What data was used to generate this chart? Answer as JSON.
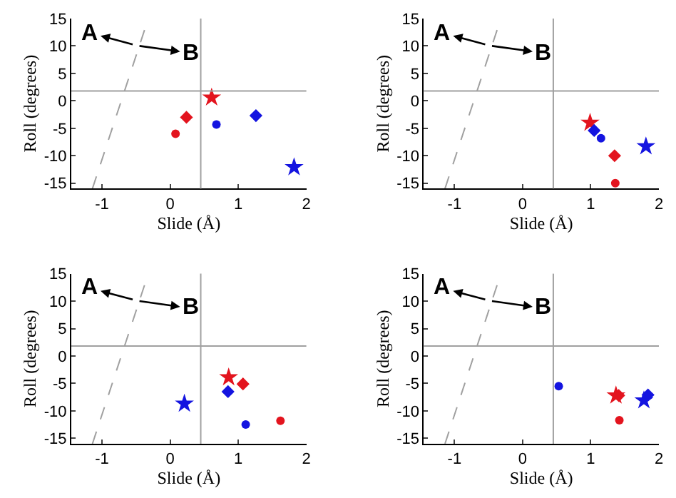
{
  "chart_data": [
    {
      "type": "scatter",
      "xlabel": "Slide (Å)",
      "ylabel": "Roll (degrees)",
      "xlim": [
        -1.45,
        2.0
      ],
      "ylim": [
        -16,
        15
      ],
      "xticks": [
        -1,
        0,
        1,
        2
      ],
      "yticks": [
        -15,
        -10,
        -5,
        0,
        5,
        10,
        15
      ],
      "annotations": [
        "A",
        "B"
      ],
      "ref_lines": [
        {
          "axis": "x",
          "value": 0.45,
          "color": "#a0a0a0"
        },
        {
          "axis": "y",
          "value": 1.8,
          "color": "#a0a0a0"
        }
      ],
      "series": [
        {
          "type": "line",
          "line_style": "dashed",
          "marker": "none",
          "color": "#a0a0a0",
          "x": [
            -1.14,
            -0.32
          ],
          "values": [
            -16,
            15
          ]
        },
        {
          "marker": "star",
          "color": "#e3141e",
          "x": [
            0.61
          ],
          "values": [
            0.6
          ]
        },
        {
          "marker": "diamond",
          "color": "#e3141e",
          "x": [
            0.24
          ],
          "values": [
            -3.0
          ]
        },
        {
          "marker": "circle",
          "color": "#e3141e",
          "x": [
            0.08
          ],
          "values": [
            -6.0
          ]
        },
        {
          "marker": "circle",
          "color": "#1414e0",
          "x": [
            0.68
          ],
          "values": [
            -4.3
          ]
        },
        {
          "marker": "diamond",
          "color": "#1414e0",
          "x": [
            1.26
          ],
          "values": [
            -2.7
          ]
        },
        {
          "marker": "star",
          "color": "#1414e0",
          "x": [
            1.82
          ],
          "values": [
            -12.1
          ]
        }
      ]
    },
    {
      "type": "scatter",
      "xlabel": "Slide (Å)",
      "ylabel": "Roll (degrees)",
      "xlim": [
        -1.45,
        2.0
      ],
      "ylim": [
        -16,
        15
      ],
      "xticks": [
        -1,
        0,
        1,
        2
      ],
      "yticks": [
        -15,
        -10,
        -5,
        0,
        5,
        10,
        15
      ],
      "annotations": [
        "A",
        "B"
      ],
      "ref_lines": [
        {
          "axis": "x",
          "value": 0.45,
          "color": "#a0a0a0"
        },
        {
          "axis": "y",
          "value": 1.8,
          "color": "#a0a0a0"
        }
      ],
      "series": [
        {
          "type": "line",
          "line_style": "dashed",
          "marker": "none",
          "color": "#a0a0a0",
          "x": [
            -1.14,
            -0.32
          ],
          "values": [
            -16,
            15
          ]
        },
        {
          "marker": "star",
          "color": "#e3141e",
          "x": [
            0.99
          ],
          "values": [
            -4.0
          ]
        },
        {
          "marker": "diamond",
          "color": "#e3141e",
          "x": [
            1.35
          ],
          "values": [
            -10.0
          ]
        },
        {
          "marker": "circle",
          "color": "#e3141e",
          "x": [
            1.36
          ],
          "values": [
            -15.0
          ]
        },
        {
          "marker": "circle",
          "color": "#1414e0",
          "x": [
            1.15
          ],
          "values": [
            -6.8
          ]
        },
        {
          "marker": "diamond",
          "color": "#1414e0",
          "x": [
            1.05
          ],
          "values": [
            -5.4
          ]
        },
        {
          "marker": "star",
          "color": "#1414e0",
          "x": [
            1.81
          ],
          "values": [
            -8.3
          ]
        }
      ]
    },
    {
      "type": "scatter",
      "xlabel": "Slide (Å)",
      "ylabel": "Roll (degrees)",
      "xlim": [
        -1.45,
        2.0
      ],
      "ylim": [
        -16,
        15
      ],
      "xticks": [
        -1,
        0,
        1,
        2
      ],
      "yticks": [
        -15,
        -10,
        -5,
        0,
        5,
        10,
        15
      ],
      "annotations": [
        "A",
        "B"
      ],
      "ref_lines": [
        {
          "axis": "x",
          "value": 0.45,
          "color": "#a0a0a0"
        },
        {
          "axis": "y",
          "value": 1.8,
          "color": "#a0a0a0"
        }
      ],
      "series": [
        {
          "type": "line",
          "line_style": "dashed",
          "marker": "none",
          "color": "#a0a0a0",
          "x": [
            -1.14,
            -0.32
          ],
          "values": [
            -16,
            15
          ]
        },
        {
          "marker": "star",
          "color": "#e3141e",
          "x": [
            0.86
          ],
          "values": [
            -3.9
          ]
        },
        {
          "marker": "diamond",
          "color": "#e3141e",
          "x": [
            1.07
          ],
          "values": [
            -5.1
          ]
        },
        {
          "marker": "circle",
          "color": "#e3141e",
          "x": [
            1.62
          ],
          "values": [
            -11.8
          ]
        },
        {
          "marker": "circle",
          "color": "#1414e0",
          "x": [
            1.11
          ],
          "values": [
            -12.5
          ]
        },
        {
          "marker": "diamond",
          "color": "#1414e0",
          "x": [
            0.85
          ],
          "values": [
            -6.5
          ]
        },
        {
          "marker": "star",
          "color": "#1414e0",
          "x": [
            0.21
          ],
          "values": [
            -8.7
          ]
        }
      ]
    },
    {
      "type": "scatter",
      "xlabel": "Slide (Å)",
      "ylabel": "Roll (degrees)",
      "xlim": [
        -1.45,
        2.0
      ],
      "ylim": [
        -16,
        15
      ],
      "xticks": [
        -1,
        0,
        1,
        2
      ],
      "yticks": [
        -15,
        -10,
        -5,
        0,
        5,
        10,
        15
      ],
      "annotations": [
        "A",
        "B"
      ],
      "ref_lines": [
        {
          "axis": "x",
          "value": 0.45,
          "color": "#a0a0a0"
        },
        {
          "axis": "y",
          "value": 1.8,
          "color": "#a0a0a0"
        }
      ],
      "series": [
        {
          "type": "line",
          "line_style": "dashed",
          "marker": "none",
          "color": "#a0a0a0",
          "x": [
            -1.14,
            -0.32
          ],
          "values": [
            -16,
            15
          ]
        },
        {
          "marker": "star",
          "color": "#e3141e",
          "x": [
            1.37
          ],
          "values": [
            -7.2
          ]
        },
        {
          "marker": "diamond",
          "color": "#e3141e",
          "x": [
            1.41
          ],
          "values": [
            -7.2
          ]
        },
        {
          "marker": "circle",
          "color": "#e3141e",
          "x": [
            1.42
          ],
          "values": [
            -11.7
          ]
        },
        {
          "marker": "circle",
          "color": "#1414e0",
          "x": [
            0.53
          ],
          "values": [
            -5.5
          ]
        },
        {
          "marker": "diamond",
          "color": "#1414e0",
          "x": [
            1.84
          ],
          "values": [
            -7.1
          ]
        },
        {
          "marker": "star",
          "color": "#1414e0",
          "x": [
            1.78
          ],
          "values": [
            -8.1
          ]
        }
      ]
    }
  ]
}
